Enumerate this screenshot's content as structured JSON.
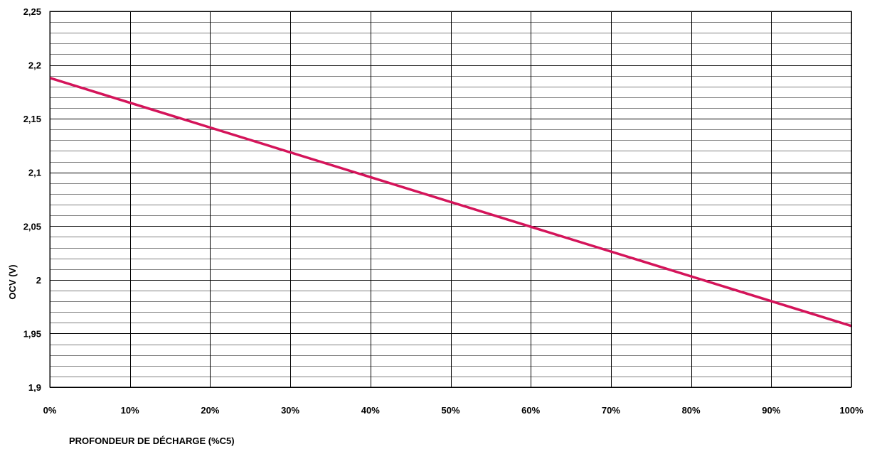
{
  "chart_data": {
    "type": "line",
    "title": "",
    "xlabel": "PROFONDEUR DE DÉCHARGE (%C5)",
    "ylabel": "OCV (V)",
    "xlim": [
      0,
      100
    ],
    "ylim": [
      1.9,
      2.25
    ],
    "x_ticks": [
      {
        "value": 0,
        "label": "0%"
      },
      {
        "value": 10,
        "label": "10%"
      },
      {
        "value": 20,
        "label": "20%"
      },
      {
        "value": 30,
        "label": "30%"
      },
      {
        "value": 40,
        "label": "40%"
      },
      {
        "value": 50,
        "label": "50%"
      },
      {
        "value": 60,
        "label": "60%"
      },
      {
        "value": 70,
        "label": "70%"
      },
      {
        "value": 80,
        "label": "80%"
      },
      {
        "value": 90,
        "label": "90%"
      },
      {
        "value": 100,
        "label": "100%"
      }
    ],
    "y_ticks": [
      {
        "value": 1.9,
        "label": "1,9"
      },
      {
        "value": 1.95,
        "label": "1,95"
      },
      {
        "value": 2.0,
        "label": "2"
      },
      {
        "value": 2.05,
        "label": "2,05"
      },
      {
        "value": 2.1,
        "label": "2,1"
      },
      {
        "value": 2.15,
        "label": "2,15"
      },
      {
        "value": 2.2,
        "label": "2,2"
      },
      {
        "value": 2.25,
        "label": "2,25"
      }
    ],
    "y_minor_step": 0.01,
    "grid": true,
    "legend": "none",
    "series": [
      {
        "color": "#d4145a",
        "x": [
          0,
          100
        ],
        "y": [
          2.188,
          1.957
        ]
      }
    ]
  }
}
